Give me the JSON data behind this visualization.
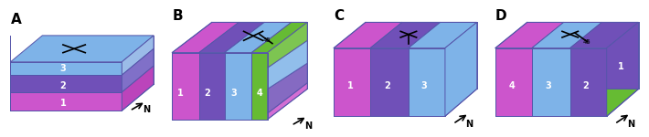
{
  "colors": {
    "light_blue": "#7EB3E8",
    "medium_blue": "#7090D0",
    "purple": "#7050B8",
    "pink": "#CC55CC",
    "light_purple": "#9966CC",
    "green": "#66BB33",
    "border": "#5555AA",
    "text": "#000000",
    "white": "#FFFFFF",
    "N_color": "#000000"
  },
  "labels": [
    "A",
    "B",
    "C",
    "D"
  ]
}
